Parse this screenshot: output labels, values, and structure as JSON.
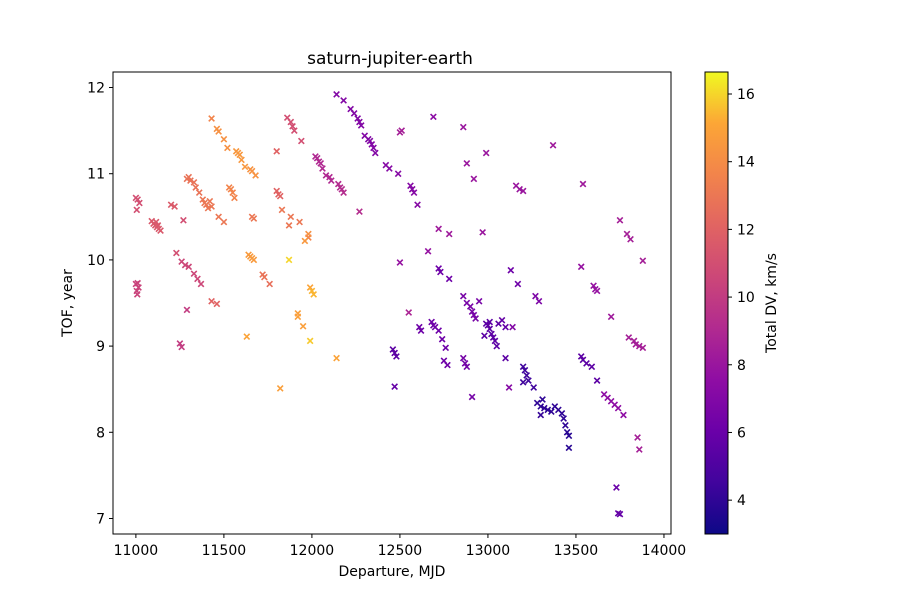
{
  "chart_data": {
    "type": "scatter",
    "title": "saturn-jupiter-earth",
    "xlabel": "Departure, MJD",
    "ylabel": "TOF, year",
    "colorbar_label": "Total DV, km/s",
    "xlim": [
      10870,
      14040
    ],
    "ylim": [
      6.82,
      12.18
    ],
    "clim": [
      3.0,
      16.65
    ],
    "xticks": [
      11000,
      11500,
      12000,
      12500,
      13000,
      13500,
      14000
    ],
    "yticks": [
      7,
      8,
      9,
      10,
      11,
      12
    ],
    "cticks": [
      4,
      6,
      8,
      10,
      12,
      14,
      16
    ],
    "colormap": "plasma",
    "marker": "x",
    "grid": false,
    "points": [
      [
        11000,
        10.72,
        11.0
      ],
      [
        11010,
        10.7,
        11.0
      ],
      [
        11020,
        10.66,
        11.0
      ],
      [
        11005,
        10.58,
        11.0
      ],
      [
        11000,
        9.72,
        10.4
      ],
      [
        11010,
        9.73,
        10.4
      ],
      [
        11015,
        9.68,
        10.4
      ],
      [
        11005,
        9.64,
        10.4
      ],
      [
        11008,
        9.6,
        10.4
      ],
      [
        11090,
        10.45,
        11.5
      ],
      [
        11100,
        10.42,
        11.5
      ],
      [
        11110,
        10.4,
        11.5
      ],
      [
        11120,
        10.38,
        11.5
      ],
      [
        11130,
        10.36,
        11.5
      ],
      [
        11140,
        10.34,
        11.5
      ],
      [
        11115,
        10.44,
        11.5
      ],
      [
        11125,
        10.4,
        11.5
      ],
      [
        11200,
        10.64,
        11.6
      ],
      [
        11220,
        10.62,
        11.6
      ],
      [
        11230,
        10.08,
        11.0
      ],
      [
        11260,
        9.98,
        10.6
      ],
      [
        11280,
        9.94,
        10.6
      ],
      [
        11300,
        9.92,
        10.6
      ],
      [
        11330,
        9.84,
        10.6
      ],
      [
        11350,
        9.78,
        10.6
      ],
      [
        11370,
        9.72,
        10.6
      ],
      [
        11250,
        9.03,
        10.0
      ],
      [
        11260,
        8.99,
        10.0
      ],
      [
        11290,
        9.42,
        10.0
      ],
      [
        11270,
        10.46,
        11.0
      ],
      [
        11290,
        10.94,
        12.8
      ],
      [
        11300,
        10.96,
        12.8
      ],
      [
        11310,
        10.92,
        12.8
      ],
      [
        11330,
        10.9,
        12.8
      ],
      [
        11340,
        10.84,
        12.8
      ],
      [
        11360,
        10.78,
        12.8
      ],
      [
        11380,
        10.7,
        13.0
      ],
      [
        11390,
        10.66,
        13.0
      ],
      [
        11400,
        10.64,
        13.0
      ],
      [
        11410,
        10.6,
        13.0
      ],
      [
        11420,
        10.68,
        13.0
      ],
      [
        11430,
        10.62,
        13.0
      ],
      [
        11430,
        11.64,
        13.6
      ],
      [
        11460,
        11.52,
        14.2
      ],
      [
        11470,
        11.49,
        14.2
      ],
      [
        11500,
        11.4,
        14.2
      ],
      [
        11520,
        11.3,
        14.2
      ],
      [
        11470,
        10.5,
        13.0
      ],
      [
        11500,
        10.44,
        13.0
      ],
      [
        11530,
        10.84,
        13.6
      ],
      [
        11540,
        10.82,
        13.6
      ],
      [
        11550,
        10.78,
        13.6
      ],
      [
        11560,
        10.72,
        13.6
      ],
      [
        11430,
        9.52,
        12.0
      ],
      [
        11460,
        9.49,
        12.0
      ],
      [
        11570,
        11.26,
        14.5
      ],
      [
        11580,
        11.24,
        14.5
      ],
      [
        11590,
        11.22,
        14.5
      ],
      [
        11600,
        11.16,
        14.5
      ],
      [
        11620,
        11.08,
        14.5
      ],
      [
        11650,
        11.05,
        14.3
      ],
      [
        11660,
        11.03,
        14.3
      ],
      [
        11680,
        10.98,
        14.3
      ],
      [
        11660,
        10.5,
        13.0
      ],
      [
        11670,
        10.48,
        13.0
      ],
      [
        11640,
        10.06,
        14.6
      ],
      [
        11650,
        10.04,
        14.6
      ],
      [
        11660,
        10.02,
        14.6
      ],
      [
        11670,
        10.0,
        14.6
      ],
      [
        11720,
        9.83,
        12.8
      ],
      [
        11730,
        9.8,
        12.8
      ],
      [
        11760,
        9.72,
        12.6
      ],
      [
        11630,
        9.11,
        15.0
      ],
      [
        11800,
        10.8,
        12.0
      ],
      [
        11810,
        10.76,
        12.0
      ],
      [
        11820,
        10.74,
        12.0
      ],
      [
        11830,
        10.58,
        13.0
      ],
      [
        11880,
        10.5,
        13.0
      ],
      [
        11870,
        10.4,
        13.0
      ],
      [
        11800,
        11.26,
        12.0
      ],
      [
        11860,
        11.65,
        11.0
      ],
      [
        11880,
        11.6,
        11.0
      ],
      [
        11890,
        11.55,
        11.0
      ],
      [
        11900,
        11.5,
        11.0
      ],
      [
        11940,
        11.38,
        11.0
      ],
      [
        11930,
        10.44,
        13.0
      ],
      [
        11980,
        10.26,
        13.6
      ],
      [
        11960,
        10.22,
        14.5
      ],
      [
        11980,
        10.3,
        14.2
      ],
      [
        11870,
        10.0,
        16.0
      ],
      [
        11920,
        9.38,
        14.8
      ],
      [
        11920,
        9.34,
        14.8
      ],
      [
        11950,
        9.23,
        14.8
      ],
      [
        11990,
        9.68,
        15.0
      ],
      [
        12000,
        9.64,
        15.4
      ],
      [
        12010,
        9.6,
        15.4
      ],
      [
        11990,
        9.06,
        15.8
      ],
      [
        11820,
        8.51,
        14.8
      ],
      [
        12140,
        8.86,
        15.0
      ],
      [
        12020,
        11.2,
        9.0
      ],
      [
        12030,
        11.18,
        9.0
      ],
      [
        12040,
        11.14,
        9.0
      ],
      [
        12050,
        11.12,
        9.0
      ],
      [
        12060,
        11.06,
        9.0
      ],
      [
        12080,
        10.98,
        9.0
      ],
      [
        12100,
        10.96,
        9.0
      ],
      [
        12110,
        10.92,
        9.0
      ],
      [
        12150,
        10.88,
        9.2
      ],
      [
        12160,
        10.84,
        9.2
      ],
      [
        12170,
        10.82,
        9.2
      ],
      [
        12180,
        10.78,
        9.2
      ],
      [
        12270,
        10.56,
        9.2
      ],
      [
        12140,
        11.92,
        7.0
      ],
      [
        12180,
        11.85,
        7.0
      ],
      [
        12220,
        11.75,
        7.0
      ],
      [
        12240,
        11.7,
        7.0
      ],
      [
        12260,
        11.64,
        7.0
      ],
      [
        12270,
        11.6,
        7.0
      ],
      [
        12280,
        11.56,
        7.0
      ],
      [
        12300,
        11.44,
        7.0
      ],
      [
        12320,
        11.4,
        7.0
      ],
      [
        12330,
        11.38,
        7.0
      ],
      [
        12340,
        11.34,
        7.0
      ],
      [
        12350,
        11.3,
        7.0
      ],
      [
        12360,
        11.24,
        7.0
      ],
      [
        12420,
        11.1,
        7.2
      ],
      [
        12440,
        11.06,
        7.2
      ],
      [
        12490,
        11.0,
        7.2
      ],
      [
        12500,
        11.48,
        8.5
      ],
      [
        12510,
        11.5,
        8.5
      ],
      [
        12560,
        10.86,
        7.2
      ],
      [
        12570,
        10.82,
        7.2
      ],
      [
        12580,
        10.78,
        7.2
      ],
      [
        12600,
        10.64,
        7.2
      ],
      [
        12500,
        9.97,
        7.8
      ],
      [
        12550,
        9.39,
        8.8
      ],
      [
        12460,
        8.96,
        5.5
      ],
      [
        12470,
        8.92,
        5.5
      ],
      [
        12480,
        8.88,
        5.5
      ],
      [
        12470,
        8.53,
        5.8
      ],
      [
        12690,
        11.66,
        7.4
      ],
      [
        12720,
        10.36,
        8.2
      ],
      [
        12780,
        10.3,
        8.2
      ],
      [
        12660,
        10.1,
        7.8
      ],
      [
        12610,
        9.22,
        6.2
      ],
      [
        12620,
        9.18,
        6.2
      ],
      [
        12680,
        9.28,
        6.2
      ],
      [
        12690,
        9.24,
        6.2
      ],
      [
        12700,
        9.22,
        6.2
      ],
      [
        12720,
        9.18,
        6.2
      ],
      [
        12740,
        9.08,
        6.2
      ],
      [
        12760,
        8.98,
        6.2
      ],
      [
        12750,
        8.83,
        6.2
      ],
      [
        12770,
        8.78,
        6.2
      ],
      [
        12720,
        9.9,
        6.2
      ],
      [
        12730,
        9.86,
        6.2
      ],
      [
        12780,
        9.78,
        6.2
      ],
      [
        12860,
        9.58,
        6.6
      ],
      [
        12880,
        9.5,
        6.6
      ],
      [
        12900,
        9.46,
        6.6
      ],
      [
        12910,
        9.4,
        6.6
      ],
      [
        12920,
        9.36,
        6.6
      ],
      [
        12930,
        9.32,
        6.6
      ],
      [
        12950,
        9.52,
        6.6
      ],
      [
        12860,
        11.54,
        8.0
      ],
      [
        12880,
        11.12,
        8.0
      ],
      [
        12920,
        10.94,
        8.0
      ],
      [
        12970,
        10.32,
        8.0
      ],
      [
        12990,
        11.24,
        8.0
      ],
      [
        12860,
        8.86,
        6.5
      ],
      [
        12870,
        8.8,
        6.5
      ],
      [
        12880,
        8.76,
        6.5
      ],
      [
        12910,
        8.41,
        6.5
      ],
      [
        12990,
        9.26,
        5.5
      ],
      [
        13000,
        9.24,
        5.5
      ],
      [
        13010,
        9.2,
        5.5
      ],
      [
        13020,
        9.14,
        5.5
      ],
      [
        13030,
        9.1,
        5.5
      ],
      [
        13040,
        9.06,
        5.5
      ],
      [
        13050,
        9.0,
        5.5
      ],
      [
        13060,
        9.26,
        5.5
      ],
      [
        13080,
        9.3,
        5.8
      ],
      [
        13100,
        9.22,
        5.8
      ],
      [
        13100,
        8.86,
        5.5
      ],
      [
        12980,
        9.12,
        5.5
      ],
      [
        13010,
        9.28,
        5.5
      ],
      [
        13130,
        9.88,
        6.2
      ],
      [
        13170,
        9.72,
        6.2
      ],
      [
        13140,
        9.22,
        7.0
      ],
      [
        13120,
        8.52,
        7.2
      ],
      [
        13160,
        10.86,
        8.0
      ],
      [
        13180,
        10.82,
        8.0
      ],
      [
        13200,
        10.8,
        8.0
      ],
      [
        13200,
        8.76,
        4.5
      ],
      [
        13210,
        8.72,
        4.5
      ],
      [
        13220,
        8.66,
        4.5
      ],
      [
        13230,
        8.6,
        4.5
      ],
      [
        13200,
        8.58,
        4.5
      ],
      [
        13260,
        8.52,
        4.5
      ],
      [
        13270,
        9.58,
        6.8
      ],
      [
        13290,
        9.52,
        6.8
      ],
      [
        13280,
        8.34,
        4.0
      ],
      [
        13300,
        8.3,
        4.0
      ],
      [
        13310,
        8.38,
        4.0
      ],
      [
        13320,
        8.28,
        4.0
      ],
      [
        13340,
        8.26,
        4.0
      ],
      [
        13360,
        8.24,
        4.0
      ],
      [
        13380,
        8.3,
        4.0
      ],
      [
        13400,
        8.26,
        4.0
      ],
      [
        13420,
        8.22,
        4.0
      ],
      [
        13430,
        8.16,
        4.0
      ],
      [
        13440,
        8.08,
        4.0
      ],
      [
        13450,
        8.0,
        3.8
      ],
      [
        13460,
        7.96,
        3.8
      ],
      [
        13460,
        7.82,
        3.8
      ],
      [
        13300,
        8.2,
        4.2
      ],
      [
        13370,
        11.33,
        8.2
      ],
      [
        13540,
        10.88,
        8.2
      ],
      [
        13530,
        9.92,
        7.8
      ],
      [
        13530,
        8.88,
        5.5
      ],
      [
        13540,
        8.84,
        5.5
      ],
      [
        13560,
        8.8,
        5.5
      ],
      [
        13590,
        8.76,
        5.5
      ],
      [
        13620,
        8.6,
        5.5
      ],
      [
        13600,
        9.7,
        7.8
      ],
      [
        13610,
        9.66,
        7.8
      ],
      [
        13620,
        9.64,
        7.8
      ],
      [
        13700,
        9.34,
        8.2
      ],
      [
        13660,
        8.44,
        7.5
      ],
      [
        13680,
        8.4,
        7.5
      ],
      [
        13700,
        8.36,
        7.5
      ],
      [
        13720,
        8.32,
        7.5
      ],
      [
        13740,
        8.28,
        7.5
      ],
      [
        13770,
        8.2,
        7.5
      ],
      [
        13750,
        10.46,
        8.5
      ],
      [
        13790,
        10.3,
        8.5
      ],
      [
        13810,
        10.24,
        8.5
      ],
      [
        13800,
        9.1,
        8.5
      ],
      [
        13830,
        9.06,
        8.5
      ],
      [
        13840,
        9.02,
        8.5
      ],
      [
        13860,
        9.0,
        8.5
      ],
      [
        13880,
        8.98,
        8.5
      ],
      [
        13880,
        9.99,
        8.5
      ],
      [
        13850,
        7.94,
        8.5
      ],
      [
        13860,
        7.8,
        8.5
      ],
      [
        13730,
        7.36,
        6.0
      ],
      [
        13740,
        7.06,
        5.8
      ],
      [
        13750,
        7.05,
        5.8
      ]
    ]
  }
}
